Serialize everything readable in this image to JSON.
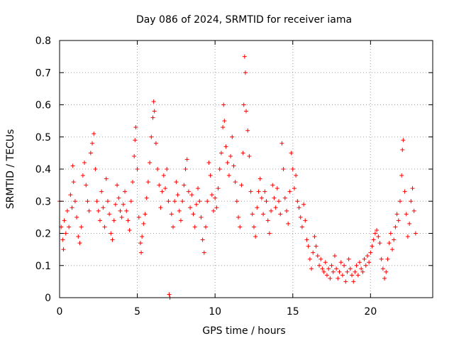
{
  "chart_data": {
    "type": "scatter",
    "title": "Day 086 of 2024, SRMTID for receiver iama",
    "xlabel": "GPS time / hours",
    "ylabel": "SRMTID / TECUs",
    "xlim": [
      0,
      24
    ],
    "ylim": [
      0,
      0.8
    ],
    "xticks": [
      "0",
      "5",
      "10",
      "15",
      "20"
    ],
    "xtick_values": [
      0,
      5,
      10,
      15,
      20
    ],
    "yticks": [
      "0",
      "0.1",
      "0.2",
      "0.3",
      "0.4",
      "0.5",
      "0.6",
      "0.7",
      "0.8"
    ],
    "ytick_values": [
      0,
      0.1,
      0.2,
      0.3,
      0.4,
      0.5,
      0.6,
      0.7,
      0.8
    ],
    "grid": true,
    "marker": "+",
    "color": "#ff0000",
    "series": [
      {
        "name": "SRMTID",
        "points": [
          [
            0.0,
            0.3
          ],
          [
            0.1,
            0.22
          ],
          [
            0.2,
            0.18
          ],
          [
            0.25,
            0.15
          ],
          [
            0.3,
            0.24
          ],
          [
            0.4,
            0.2
          ],
          [
            0.5,
            0.27
          ],
          [
            0.6,
            0.22
          ],
          [
            0.7,
            0.32
          ],
          [
            0.8,
            0.28
          ],
          [
            0.85,
            0.41
          ],
          [
            0.9,
            0.36
          ],
          [
            1.0,
            0.3
          ],
          [
            1.1,
            0.25
          ],
          [
            1.2,
            0.19
          ],
          [
            1.3,
            0.17
          ],
          [
            1.4,
            0.22
          ],
          [
            1.5,
            0.38
          ],
          [
            1.6,
            0.42
          ],
          [
            1.7,
            0.35
          ],
          [
            1.8,
            0.3
          ],
          [
            1.9,
            0.27
          ],
          [
            2.0,
            0.45
          ],
          [
            2.1,
            0.48
          ],
          [
            2.2,
            0.51
          ],
          [
            2.3,
            0.4
          ],
          [
            2.4,
            0.3
          ],
          [
            2.5,
            0.27
          ],
          [
            2.6,
            0.24
          ],
          [
            2.7,
            0.33
          ],
          [
            2.8,
            0.28
          ],
          [
            2.9,
            0.22
          ],
          [
            3.0,
            0.37
          ],
          [
            3.1,
            0.3
          ],
          [
            3.2,
            0.26
          ],
          [
            3.3,
            0.2
          ],
          [
            3.4,
            0.18
          ],
          [
            3.5,
            0.24
          ],
          [
            3.6,
            0.29
          ],
          [
            3.7,
            0.35
          ],
          [
            3.8,
            0.31
          ],
          [
            3.9,
            0.27
          ],
          [
            4.0,
            0.25
          ],
          [
            4.1,
            0.29
          ],
          [
            4.2,
            0.33
          ],
          [
            4.3,
            0.27
          ],
          [
            4.4,
            0.24
          ],
          [
            4.5,
            0.21
          ],
          [
            4.6,
            0.3
          ],
          [
            4.7,
            0.36
          ],
          [
            4.8,
            0.44
          ],
          [
            4.85,
            0.49
          ],
          [
            4.9,
            0.53
          ],
          [
            5.0,
            0.4
          ],
          [
            5.1,
            0.25
          ],
          [
            5.2,
            0.17
          ],
          [
            5.25,
            0.14
          ],
          [
            5.3,
            0.19
          ],
          [
            5.4,
            0.23
          ],
          [
            5.5,
            0.26
          ],
          [
            5.6,
            0.31
          ],
          [
            5.7,
            0.36
          ],
          [
            5.8,
            0.42
          ],
          [
            5.9,
            0.5
          ],
          [
            6.0,
            0.56
          ],
          [
            6.05,
            0.61
          ],
          [
            6.1,
            0.58
          ],
          [
            6.2,
            0.48
          ],
          [
            6.3,
            0.4
          ],
          [
            6.4,
            0.35
          ],
          [
            6.5,
            0.28
          ],
          [
            6.6,
            0.33
          ],
          [
            6.7,
            0.38
          ],
          [
            6.8,
            0.34
          ],
          [
            6.9,
            0.4
          ],
          [
            7.0,
            0.3
          ],
          [
            7.05,
            0.01
          ],
          [
            7.1,
            0.0
          ],
          [
            7.2,
            0.26
          ],
          [
            7.3,
            0.22
          ],
          [
            7.4,
            0.3
          ],
          [
            7.5,
            0.36
          ],
          [
            7.6,
            0.32
          ],
          [
            7.7,
            0.27
          ],
          [
            7.8,
            0.24
          ],
          [
            7.9,
            0.3
          ],
          [
            8.0,
            0.35
          ],
          [
            8.1,
            0.4
          ],
          [
            8.2,
            0.43
          ],
          [
            8.3,
            0.33
          ],
          [
            8.4,
            0.28
          ],
          [
            8.5,
            0.32
          ],
          [
            8.6,
            0.26
          ],
          [
            8.7,
            0.22
          ],
          [
            8.8,
            0.29
          ],
          [
            8.9,
            0.34
          ],
          [
            9.0,
            0.3
          ],
          [
            9.1,
            0.25
          ],
          [
            9.2,
            0.18
          ],
          [
            9.3,
            0.14
          ],
          [
            9.4,
            0.22
          ],
          [
            9.5,
            0.3
          ],
          [
            9.6,
            0.42
          ],
          [
            9.7,
            0.38
          ],
          [
            9.8,
            0.32
          ],
          [
            9.9,
            0.27
          ],
          [
            10.0,
            0.31
          ],
          [
            10.1,
            0.28
          ],
          [
            10.2,
            0.34
          ],
          [
            10.3,
            0.4
          ],
          [
            10.4,
            0.45
          ],
          [
            10.5,
            0.53
          ],
          [
            10.55,
            0.6
          ],
          [
            10.6,
            0.55
          ],
          [
            10.7,
            0.47
          ],
          [
            10.8,
            0.42
          ],
          [
            10.9,
            0.38
          ],
          [
            11.0,
            0.44
          ],
          [
            11.1,
            0.5
          ],
          [
            11.2,
            0.41
          ],
          [
            11.3,
            0.36
          ],
          [
            11.4,
            0.3
          ],
          [
            11.5,
            0.25
          ],
          [
            11.6,
            0.22
          ],
          [
            11.7,
            0.35
          ],
          [
            11.8,
            0.45
          ],
          [
            11.85,
            0.6
          ],
          [
            11.9,
            0.75
          ],
          [
            11.95,
            0.7
          ],
          [
            12.0,
            0.58
          ],
          [
            12.1,
            0.52
          ],
          [
            12.2,
            0.44
          ],
          [
            12.3,
            0.33
          ],
          [
            12.4,
            0.26
          ],
          [
            12.5,
            0.22
          ],
          [
            12.6,
            0.19
          ],
          [
            12.7,
            0.28
          ],
          [
            12.8,
            0.33
          ],
          [
            12.9,
            0.37
          ],
          [
            13.0,
            0.31
          ],
          [
            13.1,
            0.26
          ],
          [
            13.2,
            0.33
          ],
          [
            13.3,
            0.3
          ],
          [
            13.4,
            0.24
          ],
          [
            13.5,
            0.2
          ],
          [
            13.6,
            0.27
          ],
          [
            13.7,
            0.35
          ],
          [
            13.8,
            0.31
          ],
          [
            13.9,
            0.28
          ],
          [
            14.0,
            0.34
          ],
          [
            14.1,
            0.3
          ],
          [
            14.2,
            0.26
          ],
          [
            14.3,
            0.48
          ],
          [
            14.4,
            0.4
          ],
          [
            14.5,
            0.31
          ],
          [
            14.6,
            0.27
          ],
          [
            14.7,
            0.23
          ],
          [
            14.8,
            0.33
          ],
          [
            14.9,
            0.45
          ],
          [
            15.0,
            0.4
          ],
          [
            15.1,
            0.34
          ],
          [
            15.2,
            0.38
          ],
          [
            15.3,
            0.3
          ],
          [
            15.4,
            0.28
          ],
          [
            15.5,
            0.25
          ],
          [
            15.6,
            0.22
          ],
          [
            15.7,
            0.29
          ],
          [
            15.8,
            0.24
          ],
          [
            15.9,
            0.18
          ],
          [
            16.0,
            0.16
          ],
          [
            16.1,
            0.12
          ],
          [
            16.2,
            0.09
          ],
          [
            16.3,
            0.14
          ],
          [
            16.4,
            0.19
          ],
          [
            16.5,
            0.16
          ],
          [
            16.6,
            0.13
          ],
          [
            16.7,
            0.1
          ],
          [
            16.8,
            0.12
          ],
          [
            16.9,
            0.09
          ],
          [
            17.0,
            0.08
          ],
          [
            17.1,
            0.11
          ],
          [
            17.2,
            0.07
          ],
          [
            17.3,
            0.09
          ],
          [
            17.4,
            0.06
          ],
          [
            17.5,
            0.1
          ],
          [
            17.6,
            0.08
          ],
          [
            17.7,
            0.13
          ],
          [
            17.8,
            0.09
          ],
          [
            17.9,
            0.06
          ],
          [
            18.0,
            0.08
          ],
          [
            18.1,
            0.11
          ],
          [
            18.2,
            0.07
          ],
          [
            18.3,
            0.1
          ],
          [
            18.4,
            0.05
          ],
          [
            18.5,
            0.08
          ],
          [
            18.6,
            0.12
          ],
          [
            18.7,
            0.09
          ],
          [
            18.8,
            0.07
          ],
          [
            18.9,
            0.05
          ],
          [
            19.0,
            0.08
          ],
          [
            19.1,
            0.1
          ],
          [
            19.2,
            0.07
          ],
          [
            19.3,
            0.11
          ],
          [
            19.4,
            0.09
          ],
          [
            19.5,
            0.08
          ],
          [
            19.6,
            0.12
          ],
          [
            19.7,
            0.1
          ],
          [
            19.8,
            0.13
          ],
          [
            19.9,
            0.11
          ],
          [
            20.0,
            0.14
          ],
          [
            20.1,
            0.16
          ],
          [
            20.2,
            0.18
          ],
          [
            20.3,
            0.2
          ],
          [
            20.4,
            0.21
          ],
          [
            20.5,
            0.19
          ],
          [
            20.6,
            0.17
          ],
          [
            20.7,
            0.12
          ],
          [
            20.8,
            0.09
          ],
          [
            20.9,
            0.06
          ],
          [
            21.0,
            0.08
          ],
          [
            21.1,
            0.12
          ],
          [
            21.2,
            0.17
          ],
          [
            21.3,
            0.2
          ],
          [
            21.4,
            0.15
          ],
          [
            21.5,
            0.18
          ],
          [
            21.6,
            0.22
          ],
          [
            21.7,
            0.26
          ],
          [
            21.8,
            0.24
          ],
          [
            21.9,
            0.3
          ],
          [
            22.0,
            0.38
          ],
          [
            22.05,
            0.46
          ],
          [
            22.1,
            0.49
          ],
          [
            22.2,
            0.33
          ],
          [
            22.3,
            0.26
          ],
          [
            22.4,
            0.19
          ],
          [
            22.5,
            0.23
          ],
          [
            22.6,
            0.3
          ],
          [
            22.7,
            0.34
          ],
          [
            22.8,
            0.27
          ],
          [
            22.9,
            0.2
          ]
        ]
      }
    ]
  }
}
